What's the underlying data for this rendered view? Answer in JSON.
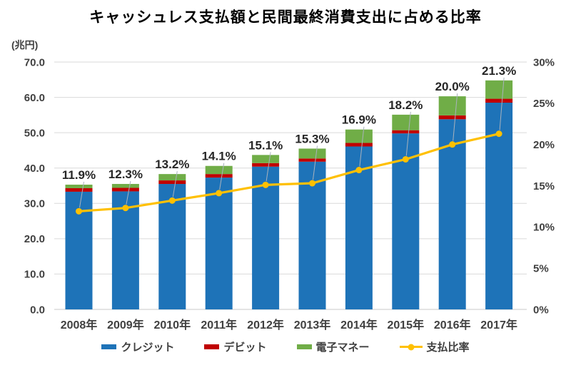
{
  "chart_data": {
    "type": "bar",
    "subtype": "stacked-column-with-line",
    "title": "キャッシュレス支払額と民間最終消費支出に占める比率",
    "categories": [
      "2008年",
      "2009年",
      "2010年",
      "2011年",
      "2012年",
      "2013年",
      "2014年",
      "2015年",
      "2016年",
      "2017年"
    ],
    "series": [
      {
        "key": "credit",
        "name": "クレジット",
        "type": "bar",
        "color": "#1E73B8",
        "values": [
          33.3,
          33.4,
          35.5,
          37.3,
          40.4,
          41.8,
          46.1,
          49.8,
          53.8,
          58.5
        ]
      },
      {
        "key": "debit",
        "name": "デビット",
        "type": "bar",
        "color": "#C00000",
        "values": [
          1.0,
          1.0,
          1.0,
          1.0,
          1.0,
          0.9,
          1.0,
          0.9,
          1.1,
          1.1
        ]
      },
      {
        "key": "emoney",
        "name": "電子マネー",
        "type": "bar",
        "color": "#70AD47",
        "values": [
          1.0,
          1.1,
          1.8,
          2.3,
          2.3,
          2.8,
          3.8,
          4.4,
          5.4,
          5.2
        ]
      },
      {
        "key": "ratio",
        "name": "支払比率",
        "type": "line",
        "axis": "right",
        "color": "#FFC000",
        "values": [
          11.9,
          12.3,
          13.2,
          14.1,
          15.1,
          15.3,
          16.9,
          18.2,
          20.0,
          21.3
        ],
        "point_labels": [
          "11.9%",
          "12.3%",
          "13.2%",
          "14.1%",
          "15.1%",
          "15.3%",
          "16.9%",
          "18.2%",
          "20.0%",
          "21.3%"
        ]
      }
    ],
    "left_axis": {
      "unit_label": "(兆円)",
      "min": 0,
      "max": 70,
      "step": 10,
      "tick_labels": [
        "0.0",
        "10.0",
        "20.0",
        "30.0",
        "40.0",
        "50.0",
        "60.0",
        "70.0"
      ]
    },
    "right_axis": {
      "min": 0,
      "max": 30,
      "step": 5,
      "tick_labels": [
        "0%",
        "5%",
        "10%",
        "15%",
        "20%",
        "25%",
        "30%"
      ]
    },
    "grid": true,
    "legend_position": "bottom",
    "colors": {
      "gridline": "#D9D9D9",
      "baseline": "#C9C9C9",
      "axis_text": "#404040",
      "data_label": "#262626",
      "leader_line": "#A9B2BC",
      "background": "#FFFFFF"
    }
  }
}
